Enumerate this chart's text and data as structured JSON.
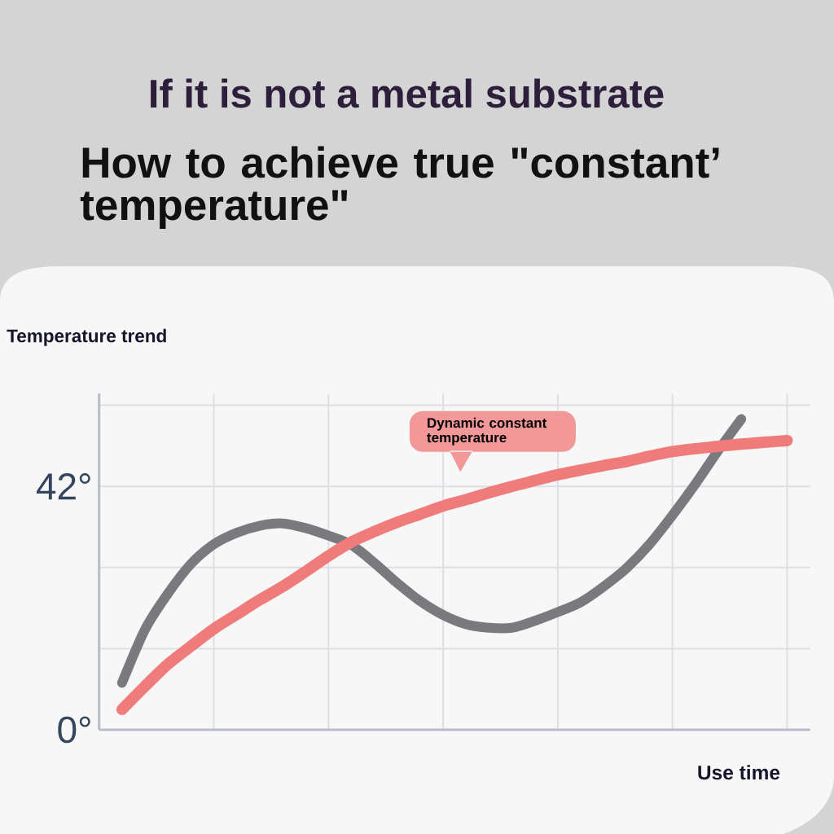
{
  "chart_data": {
    "type": "line",
    "title": "If it is not a metal substrate",
    "subtitle": "How to achieve true \"constant’ temperature\"",
    "ylabel": "Temperature trend",
    "xlabel": "Use time",
    "categories": [
      null,
      null,
      null,
      null,
      null,
      null,
      null,
      null,
      null,
      null,
      null,
      null,
      null,
      null,
      null,
      null,
      null,
      null,
      null,
      null,
      null,
      null,
      null,
      null,
      null,
      null,
      null,
      null,
      null,
      null,
      null,
      null
    ],
    "series": [
      {
        "color": "#7a7a7e",
        "values": [
          null,
          8.1,
          17.3,
          23.5,
          28.6,
          32.0,
          34.0,
          35.2,
          35.6,
          34.8,
          33.5,
          31.9,
          28.8,
          25.3,
          22.2,
          19.8,
          18.2,
          17.6,
          17.6,
          18.8,
          20.3,
          22.0,
          24.7,
          27.9,
          32.0,
          37.0,
          42.4,
          48.2,
          53.6,
          null,
          null,
          null
        ]
      },
      {
        "name": "Dynamic constant temperature",
        "color": "#ef7b7b",
        "values": [
          null,
          3.5,
          7.5,
          11.3,
          14.4,
          17.4,
          19.9,
          22.4,
          24.7,
          27.3,
          30.0,
          32.4,
          34.2,
          35.8,
          37.2,
          38.6,
          39.7,
          40.9,
          42.0,
          43.0,
          44.0,
          44.8,
          45.6,
          46.3,
          47.2,
          48.0,
          48.5,
          48.9,
          49.3,
          49.6,
          49.9,
          null
        ]
      }
    ],
    "ylim": [
      0,
      58
    ],
    "yticks": [
      {
        "value": 0,
        "label": "0°"
      },
      {
        "value": 14,
        "label": null
      },
      {
        "value": 28,
        "label": null
      },
      {
        "value": 42,
        "label": "42°"
      },
      {
        "value": 56,
        "label": null
      }
    ],
    "grid": true,
    "line_style": "solid"
  }
}
